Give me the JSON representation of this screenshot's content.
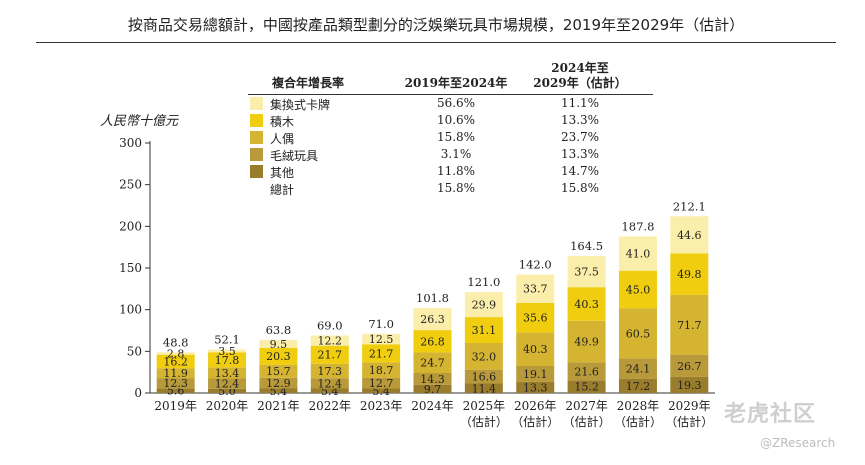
{
  "title": "按商品交易總額計，中國按產品類型劃分的泛娛樂玩具市場規模，2019年至2029年（估計）",
  "watermark": {
    "logo": "老虎社区",
    "handle": "@ZResearch"
  },
  "colors": {
    "trading_cards": "#fbeeaa",
    "building_blocks": "#f0cd0e",
    "figures": "#d5b431",
    "plush": "#b89a3a",
    "others": "#9a7d2c"
  },
  "growth_table": {
    "header_label": "複合年增長率",
    "col1": "2019年至2024年",
    "col2_line1": "2024年至",
    "col2_line2": "2029年（估計）",
    "rows": [
      {
        "name": "集換式卡牌",
        "color_key": "trading_cards",
        "v1": "56.6%",
        "v2": "11.1%"
      },
      {
        "name": "積木",
        "color_key": "building_blocks",
        "v1": "10.6%",
        "v2": "13.3%"
      },
      {
        "name": "人偶",
        "color_key": "figures",
        "v1": "15.8%",
        "v2": "23.7%"
      },
      {
        "name": "毛絨玩具",
        "color_key": "plush",
        "v1": "3.1%",
        "v2": "13.3%"
      },
      {
        "name": "其他",
        "color_key": "others",
        "v1": "11.8%",
        "v2": "14.7%"
      },
      {
        "name": "總計",
        "color_key": "",
        "v1": "15.8%",
        "v2": "15.8%"
      }
    ]
  },
  "chart_data": {
    "type": "bar",
    "stacked": true,
    "ylabel": "人民幣十億元",
    "ylim": [
      0,
      300
    ],
    "yticks": [
      0,
      50,
      100,
      150,
      200,
      250,
      300
    ],
    "categories": [
      "2019年",
      "2020年",
      "2021年",
      "2022年",
      "2023年",
      "2024年",
      "2025年",
      "2026年",
      "2027年",
      "2028年",
      "2029年"
    ],
    "category_sublabels": [
      "",
      "",
      "",
      "",
      "",
      "",
      "（估計）",
      "（估計）",
      "（估計）",
      "（估計）",
      "（估計）"
    ],
    "series": [
      {
        "name": "其他",
        "color_key": "others",
        "values": [
          5.6,
          5.0,
          5.4,
          5.4,
          5.4,
          9.7,
          11.4,
          13.3,
          15.2,
          17.2,
          19.3
        ]
      },
      {
        "name": "毛絨玩具",
        "color_key": "plush",
        "values": [
          12.3,
          12.4,
          12.9,
          12.4,
          12.7,
          14.3,
          16.6,
          19.1,
          21.6,
          24.1,
          26.7
        ]
      },
      {
        "name": "人偶",
        "color_key": "figures",
        "values": [
          11.9,
          13.4,
          15.7,
          17.3,
          18.7,
          24.7,
          32.0,
          40.3,
          49.9,
          60.5,
          71.7
        ]
      },
      {
        "name": "積木",
        "color_key": "building_blocks",
        "values": [
          16.2,
          17.8,
          20.3,
          21.7,
          21.7,
          26.8,
          31.1,
          35.6,
          40.3,
          45.0,
          49.8
        ]
      },
      {
        "name": "集換式卡牌",
        "color_key": "trading_cards",
        "values": [
          2.8,
          3.5,
          9.5,
          12.2,
          12.5,
          26.3,
          29.9,
          33.7,
          37.5,
          41.0,
          44.6
        ]
      }
    ],
    "totals": [
      48.8,
      52.1,
      63.8,
      69.0,
      71.0,
      101.8,
      121.0,
      142.0,
      164.5,
      187.8,
      212.1
    ]
  }
}
